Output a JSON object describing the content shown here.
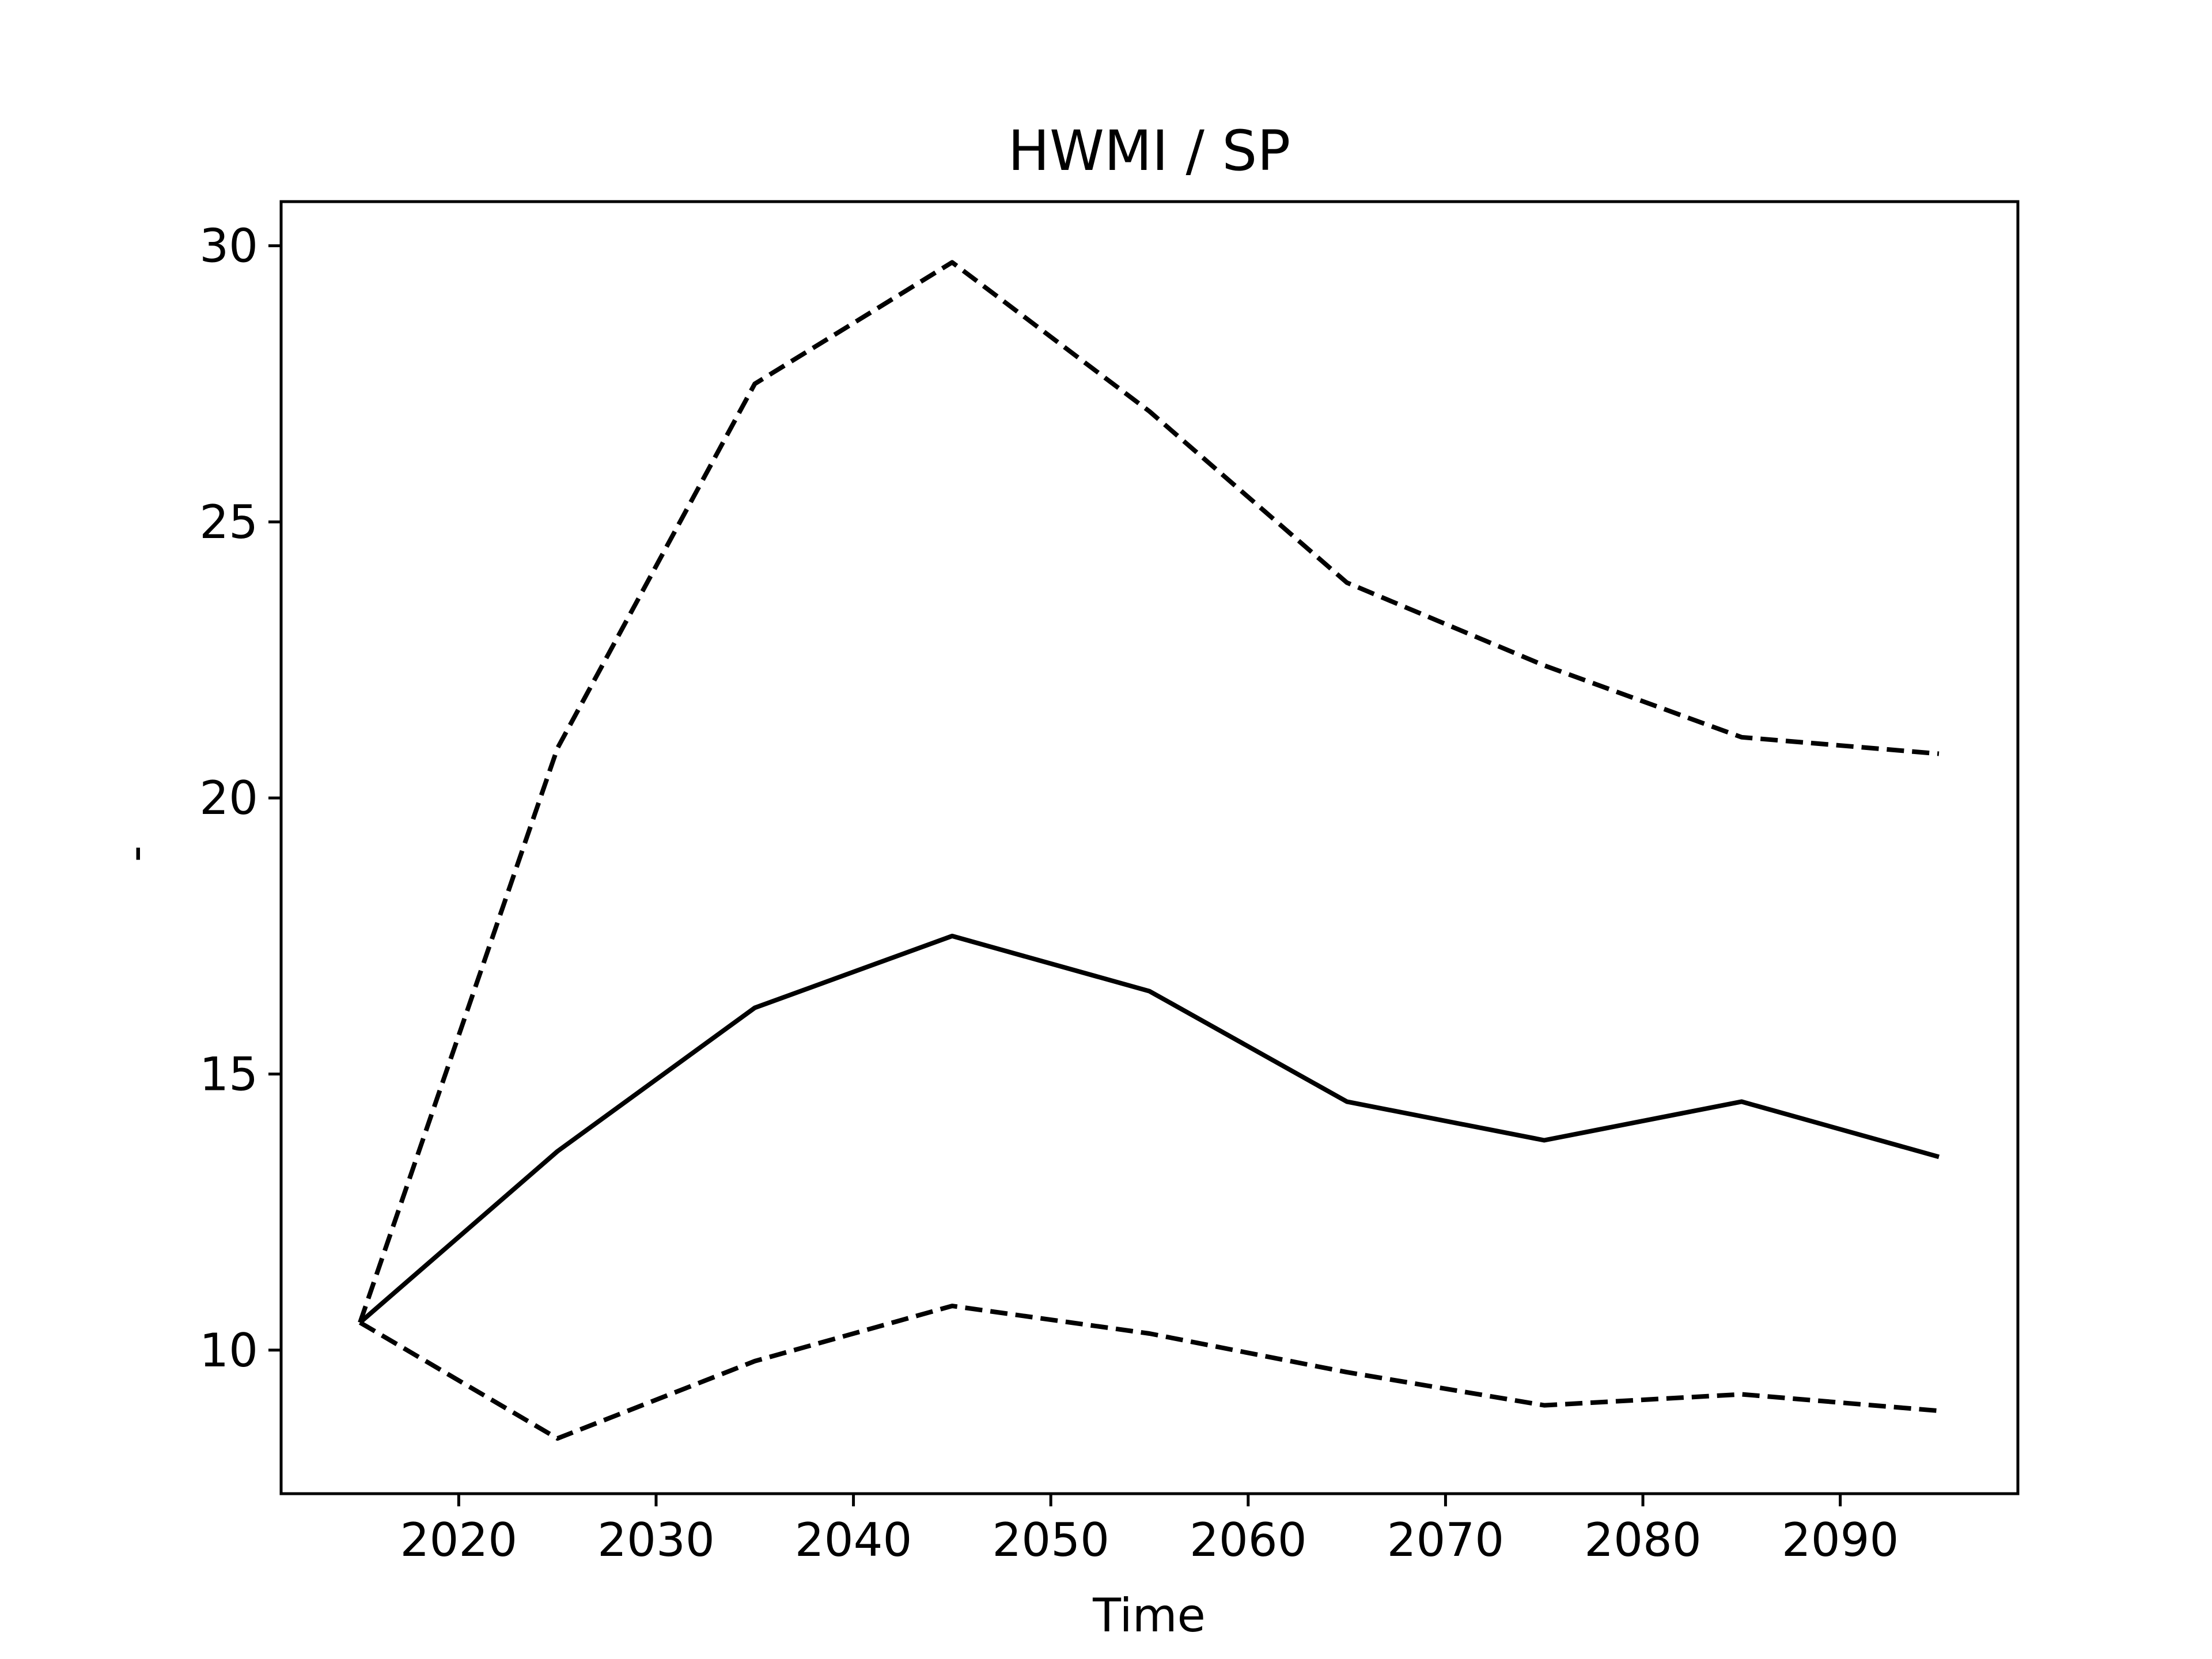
{
  "chart_data": {
    "type": "line",
    "title": "HWMI / SP",
    "xlabel": "Time",
    "ylabel": "-",
    "xlim": [
      2011,
      2099
    ],
    "ylim": [
      7.4,
      30.8
    ],
    "xticks": [
      2020,
      2030,
      2040,
      2050,
      2060,
      2070,
      2080,
      2090
    ],
    "yticks": [
      10,
      15,
      20,
      25,
      30
    ],
    "grid": false,
    "legend": "none",
    "x": [
      2015,
      2025,
      2035,
      2045,
      2055,
      2065,
      2075,
      2085,
      2095
    ],
    "series": [
      {
        "style": "solid",
        "color": "#000000",
        "values": [
          10.5,
          13.6,
          16.2,
          17.5,
          16.5,
          14.5,
          13.8,
          14.5,
          13.5
        ]
      },
      {
        "style": "dashed",
        "color": "#000000",
        "values": [
          10.5,
          20.9,
          27.5,
          29.7,
          27.0,
          23.9,
          22.4,
          21.1,
          20.8
        ]
      },
      {
        "style": "dashed",
        "color": "#000000",
        "values": [
          10.5,
          8.4,
          9.8,
          10.8,
          10.3,
          9.6,
          9.0,
          9.2,
          8.9
        ]
      }
    ]
  }
}
